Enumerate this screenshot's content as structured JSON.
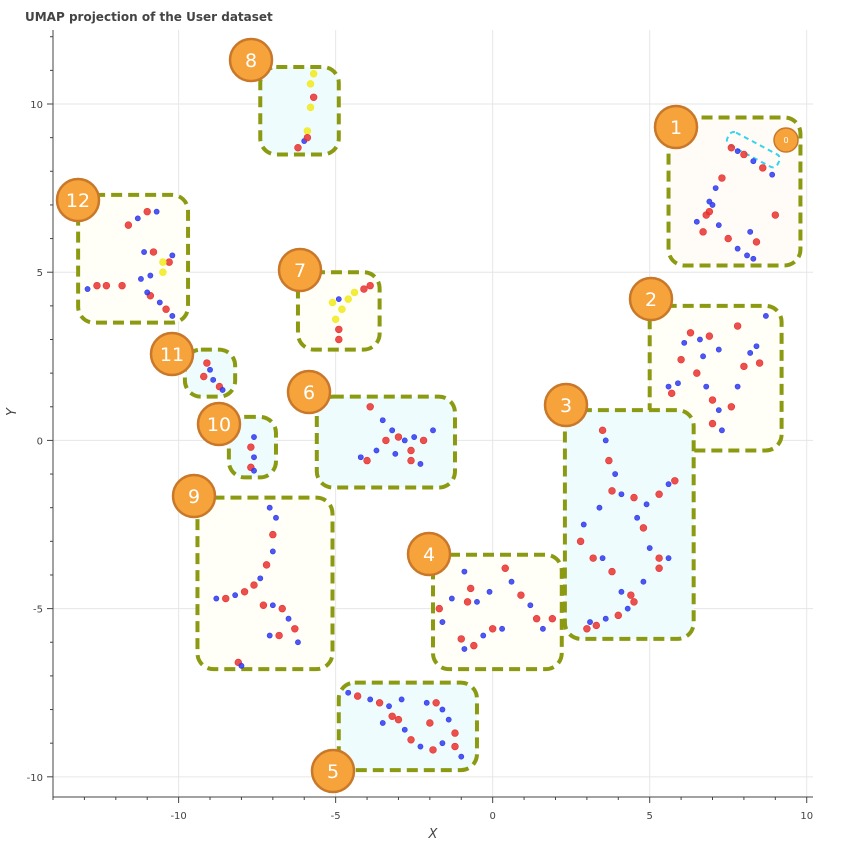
{
  "chart_data": {
    "type": "scatter",
    "title": "UMAP projection of the User dataset",
    "xlabel": "X",
    "ylabel": "Y",
    "xlim": [
      -14,
      10.2
    ],
    "ylim": [
      -10.6,
      12.2
    ],
    "xticks": [
      -10,
      -5,
      0,
      5,
      10
    ],
    "yticks": [
      -10,
      -5,
      0,
      5,
      10
    ],
    "xtick_labels": [
      "-10",
      "-5",
      "0",
      "5",
      "10"
    ],
    "ytick_labels": [
      "-10",
      "-5",
      "0",
      "5",
      "10"
    ],
    "grid": true,
    "colors": {
      "red": "#e8312f",
      "blue": "#2f39ee",
      "yellow": "#f2ea1a",
      "box_border": "#8c9a12",
      "badge_fill": "#f7a33b",
      "badge_border": "#c9782a",
      "cyan": "#35d4ee"
    },
    "clusters": [
      {
        "label": "1",
        "box": [
          5.6,
          9.8,
          5.2,
          9.6
        ],
        "fill": "#fffbf7",
        "points": [
          [
            7.6,
            8.7,
            "r"
          ],
          [
            7.8,
            8.6,
            "b"
          ],
          [
            8.0,
            8.5,
            "r"
          ],
          [
            8.3,
            8.3,
            "b"
          ],
          [
            8.6,
            8.1,
            "r"
          ],
          [
            8.9,
            7.9,
            "b"
          ],
          [
            7.3,
            7.8,
            "r"
          ],
          [
            7.1,
            7.5,
            "b"
          ],
          [
            6.9,
            7.1,
            "b"
          ],
          [
            6.8,
            6.7,
            "r"
          ],
          [
            6.5,
            6.5,
            "b"
          ],
          [
            6.7,
            6.2,
            "r"
          ],
          [
            7.2,
            6.4,
            "b"
          ],
          [
            7.5,
            6.0,
            "r"
          ],
          [
            7.8,
            5.7,
            "b"
          ],
          [
            8.1,
            5.5,
            "b"
          ],
          [
            8.4,
            5.9,
            "r"
          ],
          [
            8.2,
            6.2,
            "b"
          ],
          [
            9.0,
            6.7,
            "r"
          ],
          [
            6.9,
            6.8,
            "r"
          ],
          [
            7.0,
            7.0,
            "b"
          ],
          [
            8.3,
            5.4,
            "b"
          ]
        ]
      },
      {
        "label": "2",
        "box": [
          5.0,
          9.2,
          -0.3,
          4.0
        ],
        "fill": "#fffef7",
        "points": [
          [
            5.6,
            1.6,
            "b"
          ],
          [
            5.7,
            1.4,
            "r"
          ],
          [
            5.9,
            1.7,
            "b"
          ],
          [
            6.0,
            2.4,
            "r"
          ],
          [
            6.1,
            2.9,
            "b"
          ],
          [
            6.3,
            3.2,
            "r"
          ],
          [
            6.6,
            3.0,
            "b"
          ],
          [
            6.9,
            3.1,
            "r"
          ],
          [
            6.7,
            2.5,
            "b"
          ],
          [
            6.5,
            2.0,
            "r"
          ],
          [
            6.8,
            1.6,
            "b"
          ],
          [
            7.0,
            1.2,
            "r"
          ],
          [
            7.2,
            0.9,
            "b"
          ],
          [
            7.0,
            0.5,
            "r"
          ],
          [
            7.3,
            0.3,
            "b"
          ],
          [
            7.6,
            1.0,
            "r"
          ],
          [
            7.8,
            1.6,
            "b"
          ],
          [
            8.0,
            2.2,
            "r"
          ],
          [
            8.2,
            2.6,
            "b"
          ],
          [
            8.5,
            2.3,
            "r"
          ],
          [
            8.7,
            3.7,
            "b"
          ],
          [
            7.8,
            3.4,
            "r"
          ],
          [
            7.2,
            2.7,
            "b"
          ],
          [
            8.4,
            2.8,
            "b"
          ]
        ]
      },
      {
        "label": "3",
        "box": [
          2.3,
          6.4,
          -5.9,
          0.9
        ],
        "fill": "#effcfd",
        "points": [
          [
            3.5,
            0.3,
            "r"
          ],
          [
            3.6,
            0.0,
            "b"
          ],
          [
            3.7,
            -0.6,
            "r"
          ],
          [
            3.9,
            -1.0,
            "b"
          ],
          [
            3.8,
            -1.5,
            "r"
          ],
          [
            4.1,
            -1.6,
            "b"
          ],
          [
            4.5,
            -1.7,
            "r"
          ],
          [
            4.9,
            -1.9,
            "b"
          ],
          [
            5.3,
            -1.6,
            "r"
          ],
          [
            5.6,
            -1.3,
            "b"
          ],
          [
            5.8,
            -1.2,
            "r"
          ],
          [
            4.6,
            -2.3,
            "b"
          ],
          [
            4.8,
            -2.6,
            "r"
          ],
          [
            5.0,
            -3.2,
            "b"
          ],
          [
            5.3,
            -3.5,
            "r"
          ],
          [
            5.6,
            -3.5,
            "b"
          ],
          [
            5.3,
            -3.8,
            "r"
          ],
          [
            4.8,
            -4.2,
            "b"
          ],
          [
            4.4,
            -4.6,
            "r"
          ],
          [
            4.1,
            -4.5,
            "b"
          ],
          [
            3.8,
            -3.9,
            "r"
          ],
          [
            3.5,
            -3.5,
            "b"
          ],
          [
            3.2,
            -3.5,
            "r"
          ],
          [
            2.9,
            -2.5,
            "b"
          ],
          [
            2.8,
            -3.0,
            "r"
          ],
          [
            3.1,
            -5.4,
            "b"
          ],
          [
            3.3,
            -5.5,
            "r"
          ],
          [
            3.6,
            -5.3,
            "b"
          ],
          [
            4.0,
            -5.2,
            "r"
          ],
          [
            4.3,
            -5.0,
            "b"
          ],
          [
            4.5,
            -4.8,
            "r"
          ],
          [
            3.4,
            -2.0,
            "b"
          ],
          [
            3.0,
            -5.6,
            "r"
          ]
        ]
      },
      {
        "label": "4",
        "box": [
          -1.9,
          2.2,
          -6.8,
          -3.4
        ],
        "fill": "#fffef7",
        "points": [
          [
            -1.7,
            -5.0,
            "r"
          ],
          [
            -1.6,
            -5.4,
            "b"
          ],
          [
            -0.9,
            -3.9,
            "b"
          ],
          [
            -0.7,
            -4.4,
            "r"
          ],
          [
            -0.5,
            -4.8,
            "b"
          ],
          [
            -0.8,
            -4.8,
            "r"
          ],
          [
            -0.1,
            -4.5,
            "b"
          ],
          [
            0.4,
            -3.8,
            "r"
          ],
          [
            0.6,
            -4.2,
            "b"
          ],
          [
            0.9,
            -4.6,
            "r"
          ],
          [
            1.2,
            -4.9,
            "b"
          ],
          [
            1.4,
            -5.3,
            "r"
          ],
          [
            0.3,
            -5.6,
            "b"
          ],
          [
            0.0,
            -5.6,
            "r"
          ],
          [
            -0.3,
            -5.8,
            "b"
          ],
          [
            -0.6,
            -6.1,
            "r"
          ],
          [
            -0.9,
            -6.2,
            "b"
          ],
          [
            -1.0,
            -5.9,
            "r"
          ],
          [
            1.6,
            -5.6,
            "b"
          ],
          [
            1.9,
            -5.3,
            "r"
          ],
          [
            -1.3,
            -4.7,
            "b"
          ]
        ]
      },
      {
        "label": "5",
        "box": [
          -4.9,
          -0.5,
          -9.8,
          -7.2
        ],
        "fill": "#effcfd",
        "points": [
          [
            -4.6,
            -7.5,
            "b"
          ],
          [
            -4.3,
            -7.6,
            "r"
          ],
          [
            -3.9,
            -7.7,
            "b"
          ],
          [
            -3.6,
            -7.8,
            "r"
          ],
          [
            -3.3,
            -7.9,
            "b"
          ],
          [
            -3.0,
            -8.3,
            "r"
          ],
          [
            -2.8,
            -8.6,
            "b"
          ],
          [
            -2.6,
            -8.9,
            "r"
          ],
          [
            -2.3,
            -9.1,
            "b"
          ],
          [
            -1.9,
            -9.2,
            "r"
          ],
          [
            -1.6,
            -9.0,
            "b"
          ],
          [
            -1.2,
            -9.1,
            "r"
          ],
          [
            -1.0,
            -9.4,
            "b"
          ],
          [
            -2.1,
            -7.8,
            "b"
          ],
          [
            -1.8,
            -7.8,
            "r"
          ],
          [
            -1.6,
            -8.0,
            "b"
          ],
          [
            -2.0,
            -8.4,
            "r"
          ],
          [
            -1.4,
            -8.3,
            "b"
          ],
          [
            -1.2,
            -8.7,
            "r"
          ],
          [
            -2.9,
            -7.7,
            "b"
          ],
          [
            -3.2,
            -8.2,
            "r"
          ],
          [
            -3.5,
            -8.4,
            "b"
          ]
        ]
      },
      {
        "label": "6",
        "box": [
          -5.6,
          -1.2,
          -1.4,
          1.3
        ],
        "fill": "#effcfd",
        "points": [
          [
            -4.2,
            -0.5,
            "b"
          ],
          [
            -4.0,
            -0.6,
            "r"
          ],
          [
            -3.7,
            -0.3,
            "b"
          ],
          [
            -3.4,
            0.0,
            "r"
          ],
          [
            -3.2,
            0.3,
            "b"
          ],
          [
            -3.0,
            0.1,
            "r"
          ],
          [
            -2.8,
            0.0,
            "b"
          ],
          [
            -2.6,
            -0.3,
            "r"
          ],
          [
            -2.3,
            -0.7,
            "b"
          ],
          [
            -2.6,
            -0.6,
            "r"
          ],
          [
            -3.5,
            0.6,
            "b"
          ],
          [
            -3.9,
            1.0,
            "r"
          ],
          [
            -2.5,
            0.1,
            "b"
          ],
          [
            -2.2,
            0.0,
            "r"
          ],
          [
            -1.9,
            0.3,
            "b"
          ],
          [
            -3.1,
            -0.4,
            "b"
          ]
        ]
      },
      {
        "label": "7",
        "box": [
          -6.2,
          -3.6,
          2.7,
          5.0
        ],
        "fill": "#fffef7",
        "points": [
          [
            -4.9,
            3.0,
            "r"
          ],
          [
            -4.9,
            3.3,
            "r"
          ],
          [
            -5.0,
            3.6,
            "y"
          ],
          [
            -5.1,
            4.1,
            "y"
          ],
          [
            -4.9,
            4.2,
            "b"
          ],
          [
            -4.6,
            4.2,
            "y"
          ],
          [
            -4.4,
            4.4,
            "y"
          ],
          [
            -4.1,
            4.5,
            "r"
          ],
          [
            -3.9,
            4.6,
            "r"
          ],
          [
            -4.8,
            3.9,
            "y"
          ]
        ]
      },
      {
        "label": "8",
        "box": [
          -7.4,
          -4.9,
          8.5,
          11.1
        ],
        "fill": "#effcfd",
        "points": [
          [
            -6.2,
            8.7,
            "r"
          ],
          [
            -6.0,
            8.9,
            "b"
          ],
          [
            -5.9,
            9.2,
            "y"
          ],
          [
            -5.8,
            9.9,
            "y"
          ],
          [
            -5.7,
            10.2,
            "r"
          ],
          [
            -5.8,
            10.6,
            "y"
          ],
          [
            -5.7,
            10.9,
            "y"
          ],
          [
            -5.9,
            9.0,
            "r"
          ]
        ]
      },
      {
        "label": "9",
        "box": [
          -9.4,
          -5.1,
          -6.8,
          -1.7
        ],
        "fill": "#fffef7",
        "points": [
          [
            -8.8,
            -4.7,
            "b"
          ],
          [
            -8.5,
            -4.7,
            "r"
          ],
          [
            -8.2,
            -4.6,
            "b"
          ],
          [
            -7.9,
            -4.5,
            "r"
          ],
          [
            -7.6,
            -4.3,
            "r"
          ],
          [
            -7.4,
            -4.1,
            "b"
          ],
          [
            -7.2,
            -3.7,
            "r"
          ],
          [
            -7.0,
            -3.3,
            "b"
          ],
          [
            -7.0,
            -2.8,
            "r"
          ],
          [
            -6.9,
            -2.3,
            "b"
          ],
          [
            -7.1,
            -2.0,
            "b"
          ],
          [
            -7.3,
            -4.9,
            "r"
          ],
          [
            -7.0,
            -4.9,
            "b"
          ],
          [
            -6.7,
            -5.0,
            "r"
          ],
          [
            -6.5,
            -5.3,
            "b"
          ],
          [
            -6.3,
            -5.6,
            "r"
          ],
          [
            -6.2,
            -6.0,
            "b"
          ],
          [
            -6.8,
            -5.8,
            "r"
          ],
          [
            -7.1,
            -5.8,
            "b"
          ],
          [
            -8.1,
            -6.6,
            "r"
          ],
          [
            -8.0,
            -6.7,
            "b"
          ]
        ]
      },
      {
        "label": "10",
        "box": [
          -8.4,
          -6.9,
          -1.1,
          0.7
        ],
        "fill": "#effcfd",
        "points": [
          [
            -7.6,
            0.1,
            "b"
          ],
          [
            -7.7,
            -0.2,
            "r"
          ],
          [
            -7.6,
            -0.5,
            "b"
          ],
          [
            -7.7,
            -0.8,
            "r"
          ],
          [
            -7.6,
            -0.9,
            "b"
          ]
        ]
      },
      {
        "label": "11",
        "box": [
          -9.8,
          -8.2,
          1.3,
          2.7
        ],
        "fill": "#effcfd",
        "points": [
          [
            -9.1,
            2.3,
            "r"
          ],
          [
            -9.0,
            2.1,
            "b"
          ],
          [
            -9.2,
            1.9,
            "r"
          ],
          [
            -8.9,
            1.8,
            "b"
          ],
          [
            -8.7,
            1.6,
            "r"
          ],
          [
            -8.6,
            1.5,
            "b"
          ]
        ]
      },
      {
        "label": "12",
        "box": [
          -13.2,
          -9.7,
          3.5,
          7.3
        ],
        "fill": "#fffef7",
        "points": [
          [
            -12.9,
            4.5,
            "b"
          ],
          [
            -12.6,
            4.6,
            "r"
          ],
          [
            -12.3,
            4.6,
            "r"
          ],
          [
            -11.8,
            4.6,
            "r"
          ],
          [
            -11.2,
            4.8,
            "b"
          ],
          [
            -10.9,
            4.9,
            "b"
          ],
          [
            -10.5,
            5.0,
            "y"
          ],
          [
            -10.3,
            5.3,
            "r"
          ],
          [
            -10.2,
            5.5,
            "b"
          ],
          [
            -10.8,
            5.6,
            "r"
          ],
          [
            -11.1,
            5.6,
            "b"
          ],
          [
            -11.6,
            6.4,
            "r"
          ],
          [
            -11.3,
            6.6,
            "b"
          ],
          [
            -11.0,
            6.8,
            "r"
          ],
          [
            -10.7,
            6.8,
            "b"
          ],
          [
            -10.9,
            4.3,
            "r"
          ],
          [
            -10.6,
            4.1,
            "b"
          ],
          [
            -10.4,
            3.9,
            "r"
          ],
          [
            -10.2,
            3.7,
            "b"
          ],
          [
            -10.5,
            5.3,
            "y"
          ],
          [
            -11.0,
            4.4,
            "b"
          ]
        ]
      }
    ],
    "inset_label": "0"
  }
}
